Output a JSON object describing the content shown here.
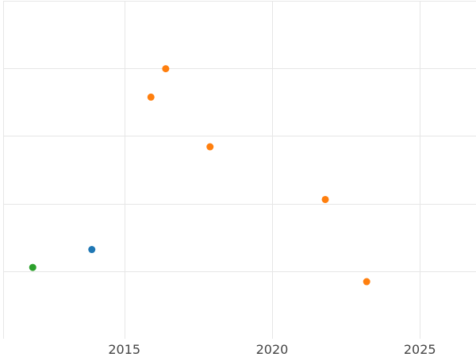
{
  "chart_data": {
    "type": "scatter",
    "title": "",
    "xlabel": "",
    "ylabel": "",
    "grid": true,
    "legend": "none",
    "xlim": [
      2010.9,
      2026.9
    ],
    "ylim": [
      0,
      100
    ],
    "x_ticks": [
      2015,
      2020,
      2025
    ],
    "x_tick_labels": [
      "2015",
      "2020",
      "2025"
    ],
    "y_gridlines": [
      20,
      40,
      60,
      80,
      100
    ],
    "series": [
      {
        "color": "#2ca02c",
        "points": [
          {
            "x": 2011.9,
            "y": 21.1
          }
        ]
      },
      {
        "color": "#1f77b4",
        "points": [
          {
            "x": 2013.9,
            "y": 26.4
          }
        ]
      },
      {
        "color": "#ff7f0e",
        "points": [
          {
            "x": 2015.9,
            "y": 71.5
          },
          {
            "x": 2016.4,
            "y": 79.9
          },
          {
            "x": 2017.9,
            "y": 56.8
          },
          {
            "x": 2021.8,
            "y": 41.2
          },
          {
            "x": 2023.2,
            "y": 16.9
          }
        ]
      }
    ]
  }
}
